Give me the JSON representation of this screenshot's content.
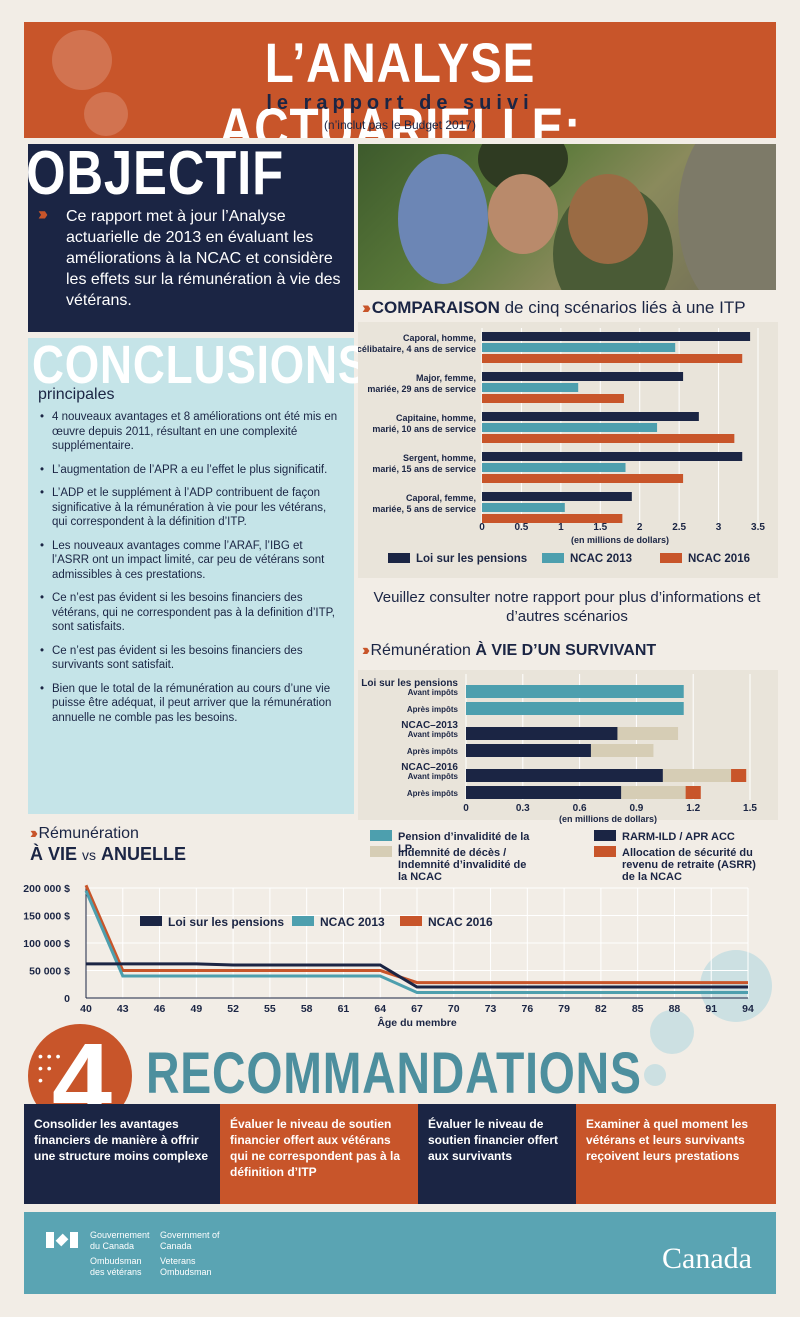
{
  "header": {
    "title": "L’ANALYSE ACTUARIELLE:",
    "subtitle": "le rapport de suivi",
    "note": "(n’inclut pas le Budget 2017)"
  },
  "objective": {
    "heading": "OBJECTIF",
    "text": "Ce rapport met à jour l’Analyse actuarielle de 2013 en évaluant les améliorations à la NCAC et considère les effets sur la rémunération à vie des vétérans."
  },
  "conclusions": {
    "heading": "CONCLUSIONS",
    "subheading": "principales",
    "items": [
      "4 nouveaux avantages et 8 améliorations ont été mis en œuvre depuis 2011, résultant en une complexité supplémentaire.",
      "L’augmentation de l’APR a eu l’effet le plus significatif.",
      "L’ADP et le supplément à l’ADP contribuent de façon significative à la rémunération à vie pour les vétérans, qui correspondent à la définition d’ITP.",
      "Les nouveaux avantages comme l’ARAF, l’IBG et l’ASRR ont un impact limité, car peu de vétérans sont admissibles à ces prestations.",
      "Ce n’est pas évident si les besoins financiers des vétérans, qui ne correspondent pas à la definition d’ITP, sont satisfaits.",
      "Ce n’est pas évident si les besoins financiers des survivants sont satisfait.",
      "Bien que le total de la rémunération au cours d’une vie puisse être adéquat, il peut arriver que la rémunération annuelle ne comble pas les besoins."
    ]
  },
  "chart1_heading": {
    "bold": "COMPARAISON",
    "rest": "de cinq scénarios liés à une ITP"
  },
  "chart2_heading": {
    "normal": "Rémunération",
    "bold": "À VIE D’UN SURVIVANT"
  },
  "chart3_heading": {
    "line1": "Rémunération",
    "bold1": "À VIE",
    "vs": "vs",
    "bold2": "ANUELLE"
  },
  "consult": "Veuillez consulter notre rapport pour plus d’informations et d’autres scénarios",
  "chart_data": [
    {
      "type": "bar",
      "categories": [
        [
          "Caporal, homme,",
          "célibataire, 4 ans de service"
        ],
        [
          "Major, femme,",
          "mariée, 29 ans de service"
        ],
        [
          "Capitaine, homme,",
          "marié, 10 ans de service"
        ],
        [
          "Sergent, homme,",
          "marié, 15 ans de service"
        ],
        [
          "Caporal, femme,",
          "mariée, 5 ans de service"
        ]
      ],
      "series": [
        {
          "name": "Loi sur les pensions",
          "color": "#1b2544",
          "values": [
            3.4,
            2.55,
            2.75,
            3.3,
            1.9
          ]
        },
        {
          "name": "NCAC 2013",
          "color": "#4d9fae",
          "values": [
            2.45,
            1.22,
            2.22,
            1.82,
            1.05
          ]
        },
        {
          "name": "NCAC 2016",
          "color": "#c8552a",
          "values": [
            3.3,
            1.8,
            3.2,
            2.55,
            1.78
          ]
        }
      ],
      "xticks": [
        "0",
        "0.5",
        "1",
        "1.5",
        "2",
        "2.5",
        "3",
        "3.5"
      ],
      "xlim": [
        0,
        3.5
      ],
      "xlabel": "(en millions de dollars)"
    },
    {
      "type": "bar",
      "stacked": true,
      "groups": [
        {
          "label": "Loi sur les pensions",
          "rows": [
            {
              "label": "Avant impôts",
              "segments": [
                0,
                0,
                1.15,
                0
              ]
            },
            {
              "label": "Après impôts",
              "segments": [
                0,
                0,
                1.15,
                0
              ]
            }
          ]
        },
        {
          "label": "NCAC–2013",
          "rows": [
            {
              "label": "Avant impôts",
              "segments": [
                0.8,
                0.32,
                0,
                0
              ]
            },
            {
              "label": "Après impôts",
              "segments": [
                0.66,
                0.33,
                0,
                0
              ]
            }
          ]
        },
        {
          "label": "NCAC–2016",
          "rows": [
            {
              "label": "Avant impôts",
              "segments": [
                1.04,
                0.36,
                0,
                0.08
              ]
            },
            {
              "label": "Après impôts",
              "segments": [
                0.82,
                0.34,
                0,
                0.08
              ]
            }
          ]
        }
      ],
      "series": [
        {
          "name": "RARM-ILD / APR ACC",
          "color": "#1b2544"
        },
        {
          "name": "Indemnité de décès / Indemnité d’invalidité de la NCAC",
          "color": "#d6cdb5"
        },
        {
          "name": "Pension d’invalidité de la LP",
          "color": "#4d9fae"
        },
        {
          "name": "Allocation de sécurité du revenu de retraite (ASRR) de la NCAC",
          "color": "#c8552a"
        }
      ],
      "legend_order": [
        2,
        0,
        1,
        3
      ],
      "xticks": [
        "0",
        "0.3",
        "0.6",
        "0.9",
        "1.2",
        "1.5"
      ],
      "xlim": [
        0,
        1.5
      ],
      "xlabel": "(en millions de dollars)"
    },
    {
      "type": "line",
      "x": [
        40,
        43,
        46,
        49,
        52,
        55,
        58,
        61,
        64,
        67,
        70,
        73,
        76,
        79,
        82,
        85,
        88,
        91,
        94
      ],
      "xlabel": "Âge du membre",
      "yticks": [
        "0",
        "50 000 $",
        "100 000 $",
        "150 000 $",
        "200 000 $"
      ],
      "ylim": [
        0,
        200000
      ],
      "series": [
        {
          "name": "Loi sur les pensions",
          "color": "#1b2544",
          "values": [
            62000,
            62000,
            62000,
            62000,
            60000,
            60000,
            60000,
            60000,
            60000,
            20000,
            20000,
            20000,
            20000,
            20000,
            20000,
            20000,
            20000,
            20000,
            20000
          ]
        },
        {
          "name": "NCAC 2013",
          "color": "#4d9fae",
          "values": [
            195000,
            40000,
            40000,
            40000,
            40000,
            40000,
            40000,
            40000,
            40000,
            10000,
            10000,
            10000,
            10000,
            10000,
            10000,
            10000,
            10000,
            10000,
            10000
          ]
        },
        {
          "name": "NCAC 2016",
          "color": "#c8552a",
          "values": [
            205000,
            50000,
            50000,
            50000,
            50000,
            50000,
            50000,
            50000,
            50000,
            28000,
            28000,
            28000,
            28000,
            28000,
            28000,
            28000,
            28000,
            28000,
            28000
          ]
        }
      ]
    }
  ],
  "recommendations": {
    "number": "4",
    "heading": "RECOMMANDATIONS",
    "items": [
      {
        "text": "Consolider les avantages financiers de manière à offrir une structure moins complexe",
        "bg": "#1b2544"
      },
      {
        "text": "Évaluer le niveau de soutien financier offert aux vétérans qui ne correspondent pas à la définition d’ITP",
        "bg": "#c8552a"
      },
      {
        "text": "Évaluer le niveau de soutien financier offert aux survivants",
        "bg": "#1b2544"
      },
      {
        "text": "Examiner à quel moment les vétérans et leurs survivants reçoivent leurs prestations",
        "bg": "#c8552a"
      }
    ]
  },
  "footer": {
    "gov_fr": "Gouvernement du Canada",
    "gov_en": "Government of Canada",
    "omb_fr": "Ombudsman des vétérans",
    "omb_en": "Veterans Ombudsman",
    "wordmark": "Canada"
  }
}
